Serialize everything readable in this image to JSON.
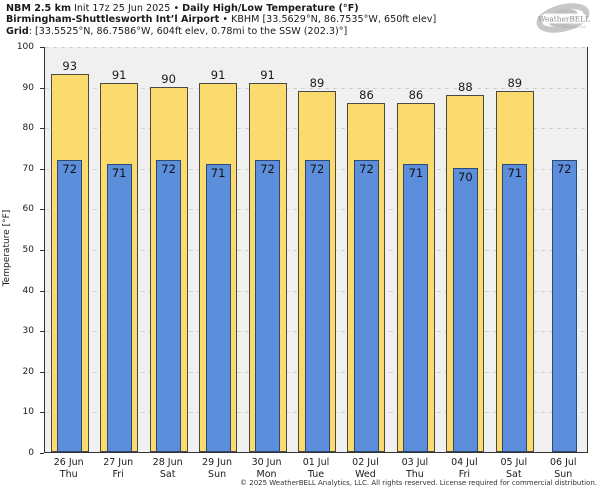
{
  "header": {
    "line1": {
      "model": "NBM 2.5 km",
      "init": " Init 17z 25 Jun 2025 • ",
      "title": "Daily High/Low Temperature (°F)"
    },
    "line2": {
      "station": "Birmingham-Shuttlesworth Int’l Airport",
      "details": " • KBHM [33.5629°N, 86.7535°W, 650ft elev]"
    },
    "line3": {
      "label": "Grid",
      "details": ": [33.5525°N, 86.7586°W, 604ft elev, 0.78mi to the SSW (202.3)°]"
    }
  },
  "logo": {
    "text": "WeatherBELL",
    "subtext": "Analytics LLC"
  },
  "chart_data": {
    "type": "bar",
    "title": "NBM 2.5 km Init 17z 25 Jun 2025 • Daily High/Low Temperature (°F)",
    "ylabel": "Temperature [°F]",
    "ylim": [
      0,
      100
    ],
    "y_ticks": [
      0,
      10,
      20,
      30,
      40,
      50,
      60,
      70,
      80,
      90,
      100
    ],
    "grid": "horizontal-dashed",
    "legend_position": "none",
    "categories": [
      {
        "date": "26 Jun",
        "day": "Thu"
      },
      {
        "date": "27 Jun",
        "day": "Fri"
      },
      {
        "date": "28 Jun",
        "day": "Sat"
      },
      {
        "date": "29 Jun",
        "day": "Sun"
      },
      {
        "date": "30 Jun",
        "day": "Mon"
      },
      {
        "date": "01 Jul",
        "day": "Tue"
      },
      {
        "date": "02 Jul",
        "day": "Wed"
      },
      {
        "date": "03 Jul",
        "day": "Thu"
      },
      {
        "date": "04 Jul",
        "day": "Fri"
      },
      {
        "date": "05 Jul",
        "day": "Sat"
      },
      {
        "date": "06 Jul",
        "day": "Sun"
      }
    ],
    "series": [
      {
        "name": "Daily High",
        "color": "#fbdb6e",
        "values": [
          93,
          91,
          90,
          91,
          91,
          89,
          86,
          86,
          88,
          89,
          null
        ]
      },
      {
        "name": "Daily Low",
        "color": "#5c8edc",
        "values": [
          72,
          71,
          72,
          71,
          72,
          72,
          72,
          71,
          70,
          71,
          72
        ]
      }
    ]
  },
  "footer": {
    "copyright": "© 2025 WeatherBELL Analytics, LLC. All rights reserved. License required for commercial distribution."
  }
}
